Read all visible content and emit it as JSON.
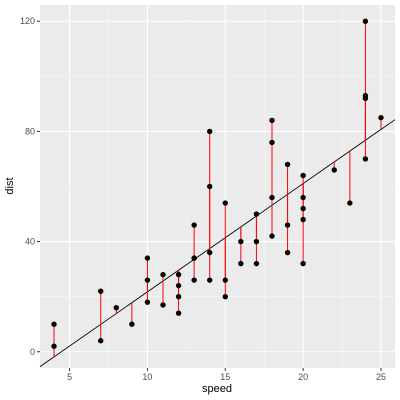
{
  "chart_data": {
    "type": "scatter",
    "title": "",
    "xlabel": "speed",
    "ylabel": "dist",
    "xlim": [
      3.1,
      25.9
    ],
    "ylim": [
      -5.9,
      125.9
    ],
    "x_ticks": [
      5,
      10,
      15,
      20,
      25
    ],
    "y_ticks": [
      0,
      40,
      80,
      120
    ],
    "grid": true,
    "legend": "none",
    "regression_line": {
      "intercept": -17.579,
      "slope": 3.932
    },
    "x": [
      4,
      4,
      7,
      7,
      8,
      9,
      10,
      10,
      10,
      11,
      11,
      12,
      12,
      12,
      12,
      13,
      13,
      13,
      13,
      14,
      14,
      14,
      14,
      15,
      15,
      15,
      16,
      16,
      17,
      17,
      17,
      18,
      18,
      18,
      18,
      19,
      19,
      19,
      20,
      20,
      20,
      20,
      20,
      22,
      23,
      24,
      24,
      24,
      24,
      25
    ],
    "y": [
      2,
      10,
      4,
      22,
      16,
      10,
      18,
      26,
      34,
      17,
      28,
      14,
      20,
      24,
      28,
      26,
      34,
      34,
      46,
      26,
      36,
      60,
      80,
      20,
      26,
      54,
      32,
      40,
      32,
      40,
      50,
      42,
      56,
      76,
      84,
      36,
      46,
      68,
      32,
      48,
      52,
      56,
      64,
      66,
      54,
      70,
      92,
      93,
      120,
      85
    ],
    "colors": {
      "panel_background": "#ebebeb",
      "grid_major": "#ffffff",
      "grid_minor": "#f5f5f5",
      "points": "#000000",
      "residual_segments": "#ff0000",
      "regression_line": "#000000"
    }
  }
}
